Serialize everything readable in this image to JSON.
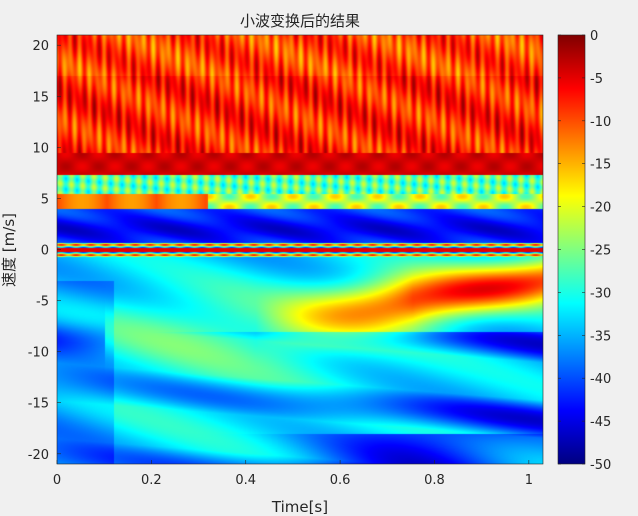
{
  "chart_data": {
    "type": "heatmap",
    "title": "小波变换后的结果",
    "xlabel": "Time[s]",
    "ylabel": "速度 [m/s]",
    "xlim": [
      0,
      1.03
    ],
    "ylim": [
      -21,
      21
    ],
    "x_ticks": [
      0,
      0.2,
      0.4,
      0.6,
      0.8,
      1
    ],
    "x_tick_labels": [
      "0",
      "0.2",
      "0.4",
      "0.6",
      "0.8",
      "1"
    ],
    "y_ticks": [
      20,
      15,
      10,
      5,
      0,
      -5,
      -10,
      -15,
      -20
    ],
    "y_tick_labels": [
      "20",
      "15",
      "10",
      "5",
      "0",
      "-5",
      "-10",
      "-15",
      "-20"
    ],
    "colorbar": {
      "colormap": "jet",
      "clim": [
        -50,
        0
      ],
      "ticks": [
        0,
        -5,
        -10,
        -15,
        -20,
        -25,
        -30,
        -35,
        -40,
        -45,
        -50
      ],
      "tick_labels": [
        "0",
        "-5",
        "-10",
        "-15",
        "-20",
        "-25",
        "-30",
        "-35",
        "-40",
        "-45",
        "-50"
      ]
    },
    "grid": false
  }
}
